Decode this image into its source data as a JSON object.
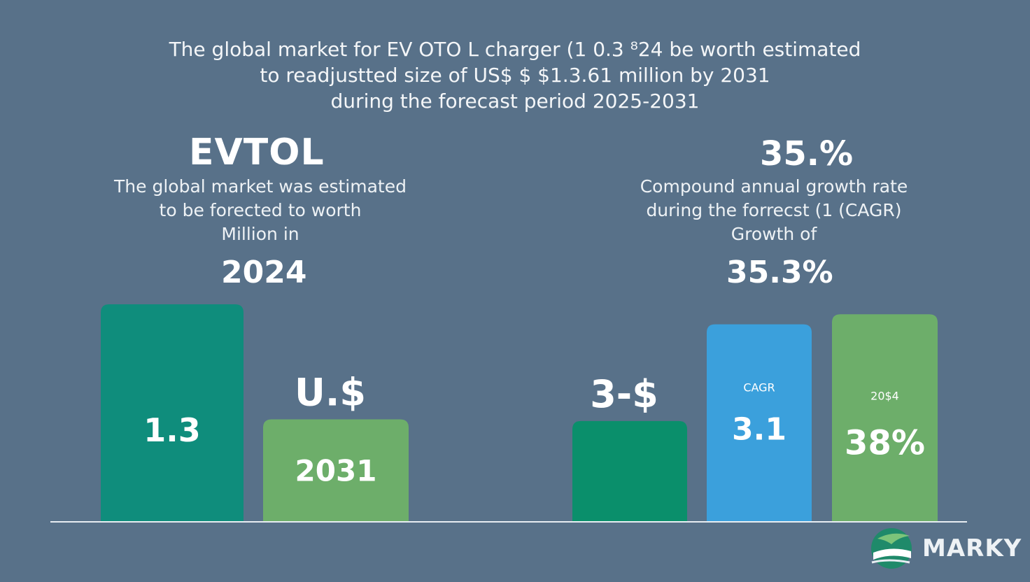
{
  "headline": {
    "line1": "The global market for EV OTO L charger (1 0.3 ⁸24 be worth  estimated",
    "line2": "to readjustted size of US$ $  $1.3.61 million by 2031",
    "line3": "during the forecast period 2025-2031"
  },
  "left": {
    "brand": "EVTOL",
    "desc1": "The global market was estimated",
    "desc2": "to be forected to worth",
    "desc3": "Million in",
    "year": "2024"
  },
  "right": {
    "percent": "35.%",
    "desc1": "Compound annual growth rate",
    "desc2": "during the forrecst (1 (CAGR)",
    "desc3": "Growth of",
    "cagr": "35.3%"
  },
  "logo": {
    "text": "MARKY"
  },
  "colors": {
    "background": "#587189",
    "teal": "#0f8d7c",
    "green_light": "#6dae6a",
    "green_dark": "#0a8f6b",
    "blue": "#3ba0dc",
    "baseline": "#e8edf2"
  },
  "chart_data": {
    "type": "bar",
    "bars": [
      {
        "label": "1.3",
        "value": 1.3,
        "group": "left",
        "color": "#0f8d7c",
        "caption": "",
        "label_above": ""
      },
      {
        "label": "2031",
        "value": 0.61,
        "group": "left",
        "color": "#6dae6a",
        "caption": "",
        "label_above": "U.$"
      },
      {
        "label": "",
        "value": 0.6,
        "group": "right",
        "color": "#0a8f6b",
        "caption": "",
        "label_above": "3-$"
      },
      {
        "label": "3.1",
        "value": 1.18,
        "group": "right",
        "color": "#3ba0dc",
        "caption": "CAGR",
        "label_above": ""
      },
      {
        "label": "38%",
        "value": 1.24,
        "group": "right",
        "color": "#6dae6a",
        "caption": "20$4",
        "label_above": ""
      }
    ],
    "ylim": [
      0,
      1.3
    ],
    "grid": false,
    "legend": "none"
  }
}
